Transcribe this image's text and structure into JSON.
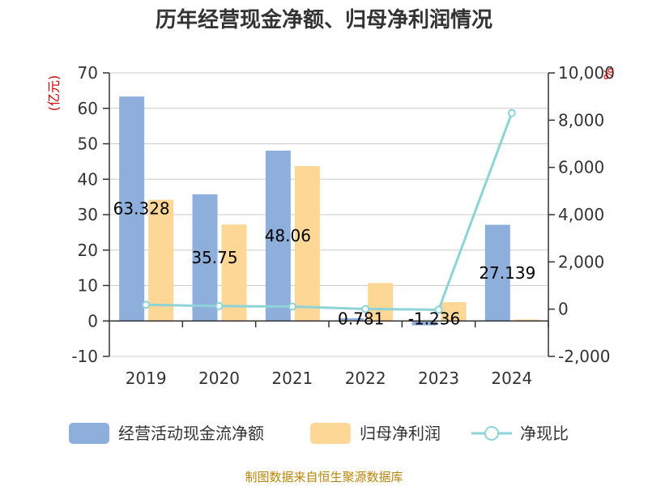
{
  "title": "历年经营现金净额、归母净利润情况",
  "source": "制图数据来自恒生聚源数据库",
  "colors": {
    "bar1": "#8eaedc",
    "bar2": "#fdd795",
    "line": "#8dd3d7",
    "grid": "#cccccc",
    "axis": "#333333"
  },
  "chart_data": {
    "type": "bar",
    "categories": [
      "2019",
      "2020",
      "2021",
      "2022",
      "2023",
      "2024"
    ],
    "left_axis": {
      "unit": "(亿元)",
      "ylim": [
        -10,
        70
      ],
      "ticks": [
        "70",
        "60",
        "50",
        "40",
        "30",
        "20",
        "10",
        "0",
        "-10"
      ]
    },
    "right_axis": {
      "unit": "%",
      "ylim": [
        -2000,
        10000
      ],
      "ticks": [
        "10,000",
        "8,000",
        "6,000",
        "4,000",
        "2,000",
        "0",
        "-2,000"
      ]
    },
    "series": [
      {
        "name": "经营活动现金流净额",
        "type": "bar",
        "axis": "left",
        "values": [
          63.328,
          35.75,
          48.06,
          0.781,
          -1.236,
          27.139
        ],
        "labels": [
          "63.328",
          "35.75",
          "48.06",
          "0.781",
          "-1.236",
          "27.139"
        ]
      },
      {
        "name": "归母净利润",
        "type": "bar",
        "axis": "left",
        "values": [
          34.2,
          27.2,
          43.7,
          10.7,
          5.3,
          0.4
        ]
      },
      {
        "name": "净现比",
        "type": "line",
        "axis": "right",
        "values": [
          185,
          130,
          110,
          7,
          -23,
          8300
        ]
      }
    ],
    "grid": true,
    "legend_position": "bottom"
  }
}
